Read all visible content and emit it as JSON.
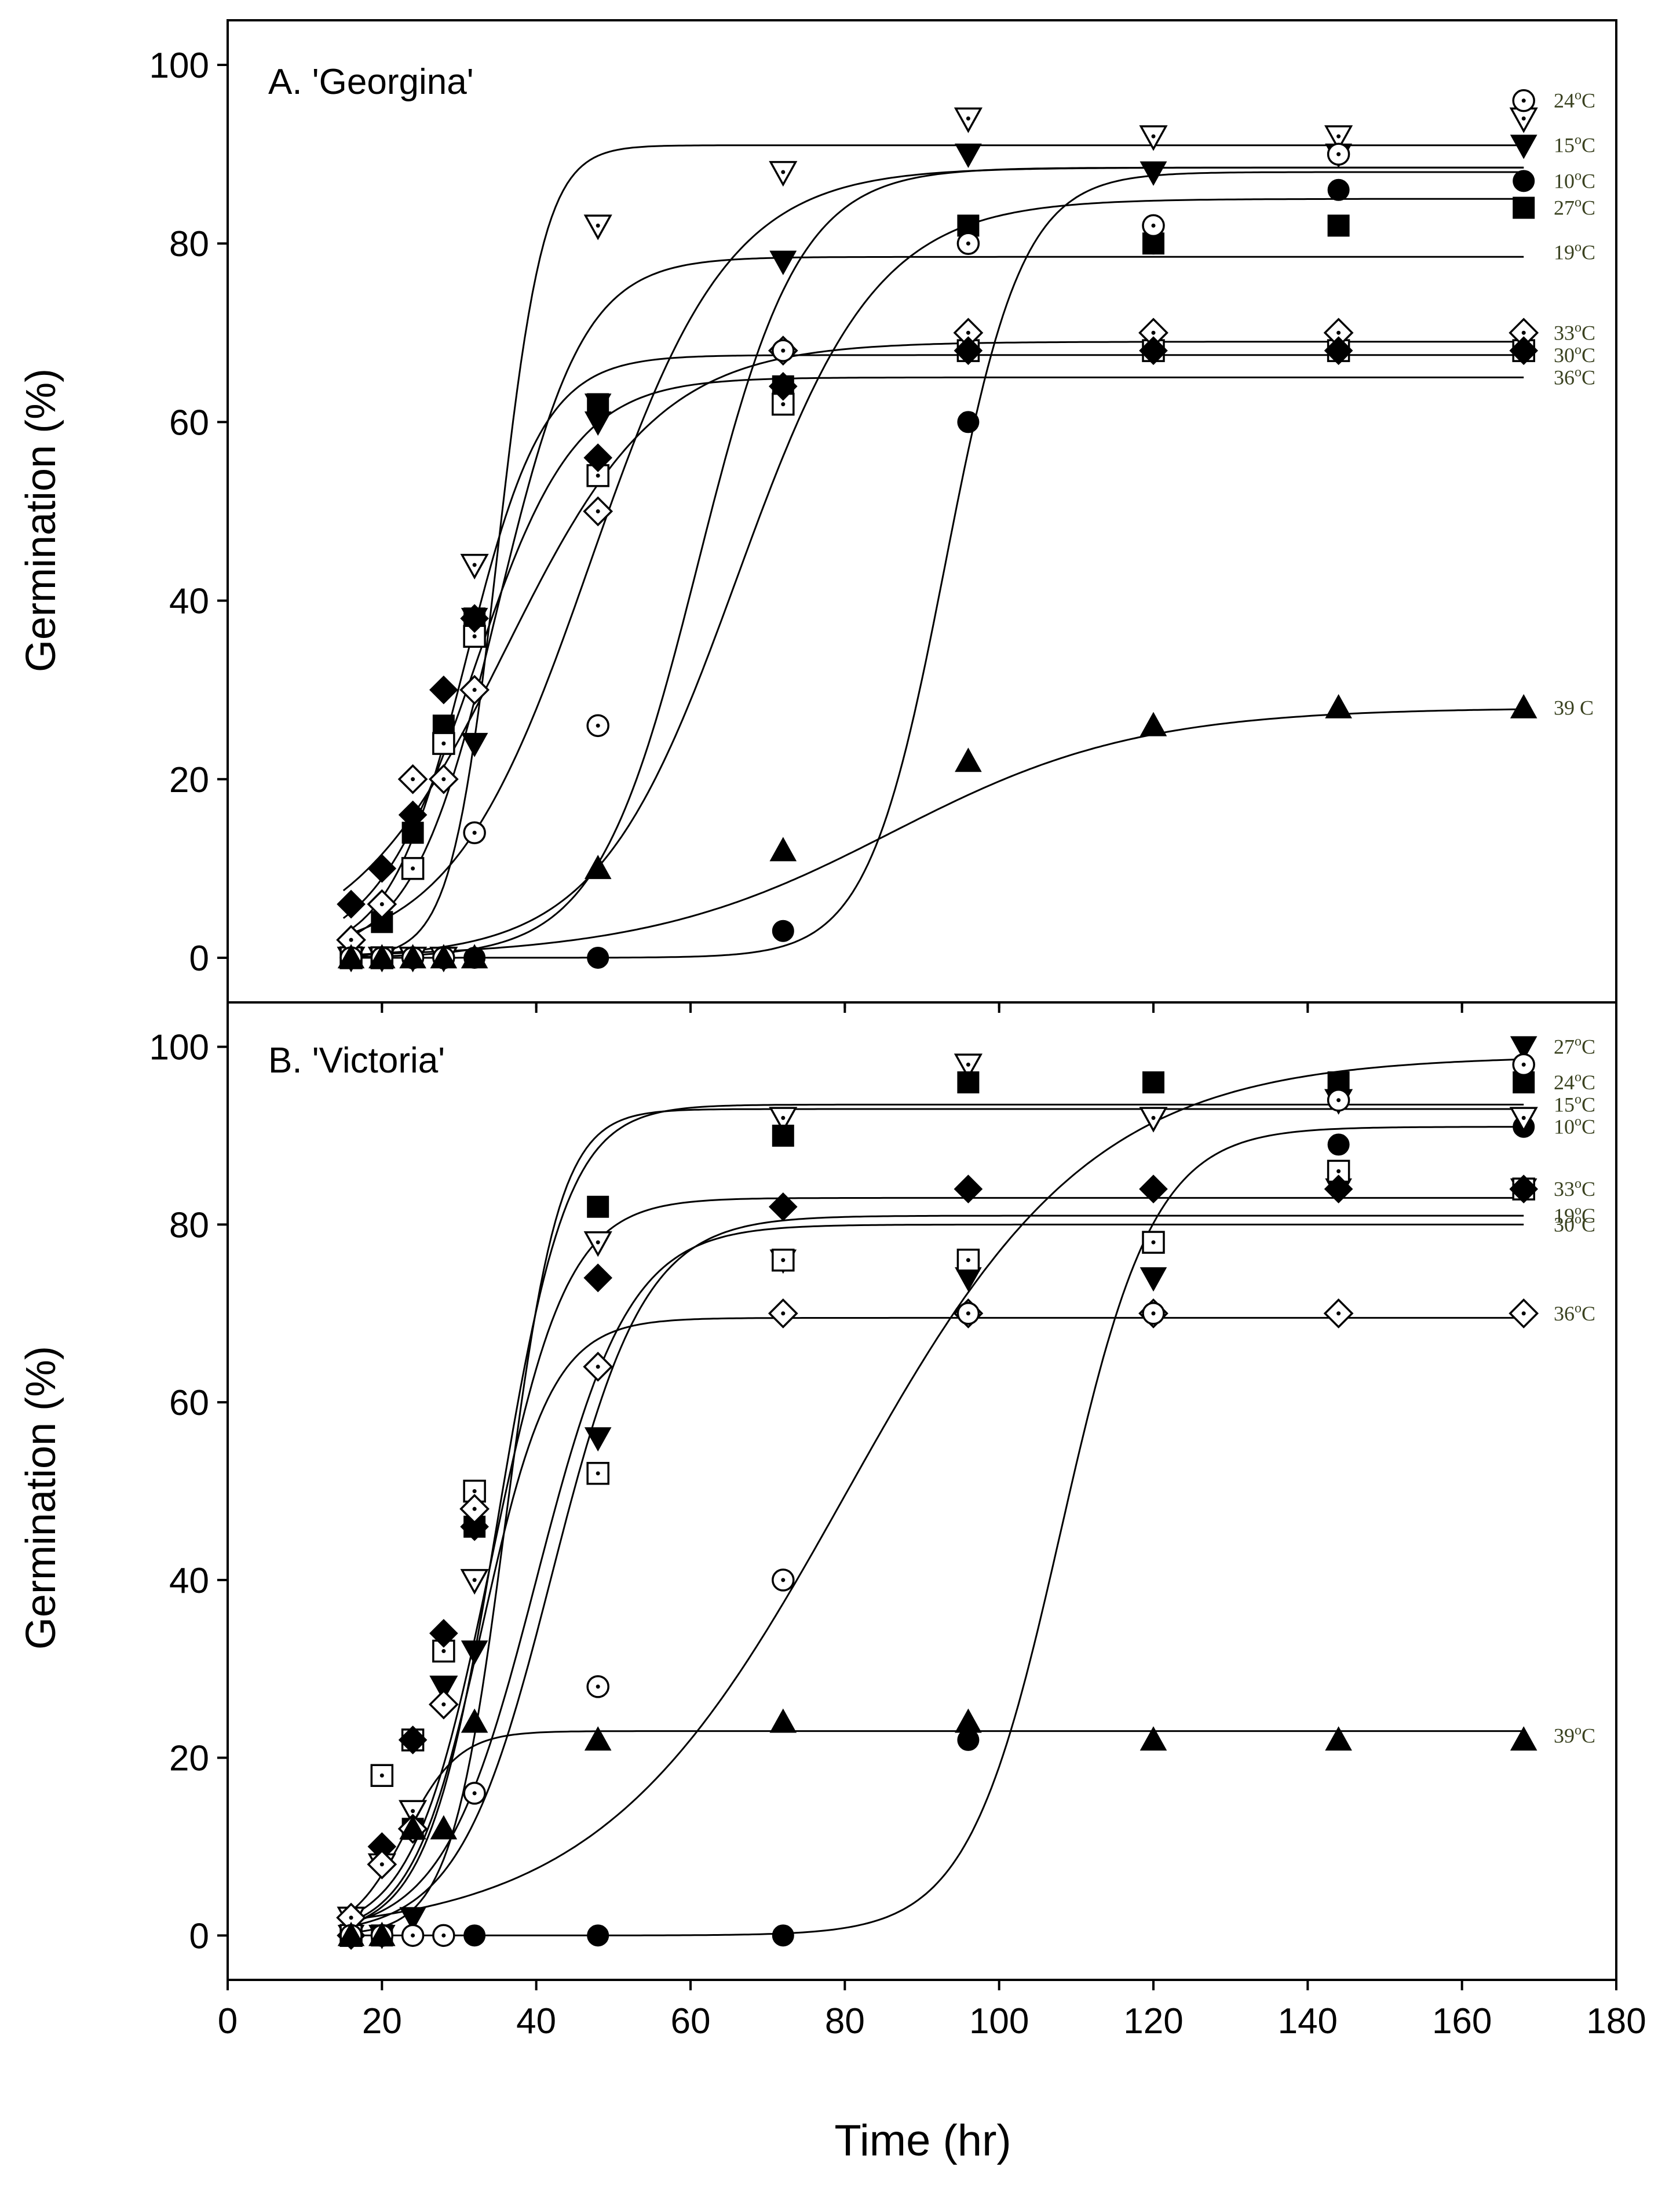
{
  "figure": {
    "xlabel": "Time (hr)",
    "x_ticks": [
      0,
      20,
      40,
      60,
      80,
      100,
      120,
      140,
      160,
      180
    ],
    "y_ticks": [
      0,
      20,
      40,
      60,
      80,
      100
    ]
  },
  "chart_data": [
    {
      "type": "scatter",
      "panel": "A",
      "title": "A. 'Georgina'",
      "xlabel": "",
      "ylabel": "Germination (%)",
      "xlim": [
        0,
        180
      ],
      "ylim": [
        -5,
        105
      ],
      "series": [
        {
          "name": "10°C",
          "label_base": "10",
          "label_sup": "o",
          "label_unit": "C",
          "label_y": 87,
          "marker": "circle-filled",
          "x": [
            16,
            20,
            24,
            28,
            32,
            48,
            72,
            96,
            120,
            144,
            168
          ],
          "y": [
            0,
            0,
            0,
            0,
            0,
            0,
            3,
            60,
            80,
            86,
            87
          ],
          "fit": {
            "a": 88,
            "x0": 93,
            "b": 5
          }
        },
        {
          "name": "15°C",
          "label_base": "15",
          "label_sup": "o",
          "label_unit": "C",
          "label_y": 91,
          "marker": "triangle-down-filled",
          "x": [
            16,
            20,
            24,
            28,
            32,
            48,
            72,
            96,
            120,
            144,
            168
          ],
          "y": [
            0,
            0,
            0,
            0,
            24,
            60,
            78,
            90,
            88,
            90,
            91
          ],
          "fit": {
            "a": 88.5,
            "x0": 47,
            "b": 9
          }
        },
        {
          "name": "19°C",
          "label_base": "19",
          "label_sup": "o",
          "label_unit": "C",
          "label_y": 79,
          "marker": "triangle-down-filled",
          "x": [
            16,
            20,
            24,
            28,
            32,
            48,
            72,
            96,
            120,
            144,
            168
          ],
          "y": [
            0,
            0,
            0,
            0,
            38,
            62,
            78,
            90,
            88,
            90,
            91
          ],
          "fit": {
            "a": 78.5,
            "x0": 35,
            "b": 5.5
          }
        },
        {
          "name": "24°C",
          "label_base": "24",
          "label_sup": "o",
          "label_unit": "C",
          "label_y": 96,
          "marker": "triangle-down-open-dot",
          "x": [
            16,
            20,
            24,
            28,
            32,
            48,
            72,
            96,
            120,
            144,
            168
          ],
          "y": [
            0,
            0,
            0,
            0,
            44,
            82,
            88,
            94,
            92,
            92,
            94
          ],
          "fit": {
            "a": 91,
            "x0": 35,
            "b": 3
          }
        },
        {
          "name": "27°C",
          "label_base": "27",
          "label_sup": "o",
          "label_unit": "C",
          "label_y": 84,
          "marker": "square-filled",
          "x": [
            16,
            20,
            24,
            28,
            32,
            48,
            72,
            96,
            120,
            144,
            168
          ],
          "y": [
            0,
            4,
            14,
            26,
            38,
            62,
            64,
            82,
            80,
            82,
            84
          ],
          "fit": {
            "a": 85,
            "x0": 66,
            "b": 9
          }
        },
        {
          "name": "30°C",
          "label_base": "30",
          "label_sup": "o",
          "label_unit": "C",
          "label_y": 67.5,
          "marker": "square-open-dot",
          "x": [
            16,
            20,
            24,
            28,
            32,
            48,
            72,
            96,
            120,
            144,
            168
          ],
          "y": [
            0,
            0,
            10,
            24,
            36,
            54,
            62,
            68,
            68,
            68,
            68
          ],
          "fit": {
            "a": 67.5,
            "x0": 31,
            "b": 5
          }
        },
        {
          "name": "33°C",
          "label_base": "33",
          "label_sup": "o",
          "label_unit": "C",
          "label_y": 70,
          "marker": "diamond-open-dot",
          "x": [
            16,
            20,
            24,
            28,
            32,
            48,
            72,
            96,
            120,
            144,
            168
          ],
          "y": [
            2,
            6,
            20,
            20,
            30,
            50,
            68,
            70,
            70,
            70,
            70
          ],
          "fit": {
            "a": 69,
            "x0": 36,
            "b": 10
          }
        },
        {
          "name": "36°C",
          "label_base": "36",
          "label_sup": "o",
          "label_unit": "C",
          "label_y": 65,
          "marker": "diamond-filled",
          "x": [
            16,
            20,
            24,
            28,
            32,
            48,
            72,
            96,
            120,
            144,
            168
          ],
          "y": [
            6,
            10,
            16,
            30,
            38,
            56,
            64,
            68,
            68,
            68,
            68
          ],
          "fit": {
            "a": 65,
            "x0": 32,
            "b": 6.5
          }
        },
        {
          "name": "circle open",
          "label_base": "",
          "label_sup": "",
          "label_unit": "",
          "label_y": 0,
          "marker": "circle-open-dot",
          "x": [
            16,
            20,
            24,
            28,
            32,
            48,
            72,
            96,
            120,
            144,
            168
          ],
          "y": [
            0,
            0,
            0,
            0,
            14,
            26,
            68,
            80,
            82,
            90,
            96
          ],
          "fit": {
            "a": 88.5,
            "x0": 61,
            "b": 6.5
          }
        },
        {
          "name": "39 C",
          "label_base": "39 C",
          "label_sup": "",
          "label_unit": "",
          "label_y": 28,
          "marker": "triangle-up-filled",
          "x": [
            16,
            20,
            24,
            28,
            32,
            48,
            72,
            96,
            120,
            144,
            168
          ],
          "y": [
            0,
            0,
            0,
            0,
            0,
            10,
            12,
            22,
            26,
            28,
            28
          ],
          "fit": {
            "a": 28,
            "x0": 86,
            "b": 16
          }
        }
      ]
    },
    {
      "type": "scatter",
      "panel": "B",
      "title": "B. 'Victoria'",
      "xlabel": "Time (hr)",
      "ylabel": "Germination (%)",
      "xlim": [
        0,
        180
      ],
      "ylim": [
        -5,
        105
      ],
      "series": [
        {
          "name": "10°C",
          "label_base": "10",
          "label_sup": "o",
          "label_unit": "C",
          "label_y": 91,
          "marker": "circle-filled",
          "x": [
            16,
            20,
            24,
            28,
            32,
            48,
            72,
            96,
            120,
            144,
            168
          ],
          "y": [
            0,
            0,
            0,
            0,
            0,
            0,
            0,
            22,
            70,
            89,
            91
          ],
          "fit": {
            "a": 91,
            "x0": 108,
            "b": 6
          }
        },
        {
          "name": "15°C",
          "label_base": "15",
          "label_sup": "o",
          "label_unit": "C",
          "label_y": 93.5,
          "marker": "triangle-down-open-dot",
          "x": [
            16,
            20,
            24,
            28,
            32,
            48,
            72,
            96,
            120,
            144,
            168
          ],
          "y": [
            2,
            8,
            14,
            28,
            40,
            78,
            92,
            98,
            92,
            94,
            92
          ],
          "fit": {
            "a": 93.5,
            "x0": 35,
            "b": 4.5
          }
        },
        {
          "name": "19°C",
          "label_base": "19",
          "label_sup": "o",
          "label_unit": "C",
          "label_y": 81,
          "marker": "triangle-down-filled",
          "x": [
            16,
            20,
            24,
            28,
            32,
            48,
            72,
            96,
            120,
            144,
            168
          ],
          "y": [
            0,
            0,
            2,
            28,
            32,
            56,
            76,
            74,
            74,
            84,
            84
          ],
          "fit": {
            "a": 81,
            "x0": 42,
            "b": 6
          }
        },
        {
          "name": "24°C",
          "label_base": "24",
          "label_sup": "o",
          "label_unit": "C",
          "label_y": 96,
          "marker": "square-filled",
          "x": [
            16,
            20,
            24,
            28,
            32,
            48,
            72,
            96,
            120,
            144,
            168
          ],
          "y": [
            0,
            0,
            12,
            32,
            46,
            82,
            90,
            96,
            96,
            96,
            96
          ],
          "fit": {
            "a": 93,
            "x0": 36,
            "b": 3.5
          }
        },
        {
          "name": "27°C",
          "label_base": "27",
          "label_sup": "o",
          "label_unit": "C",
          "label_y": 100,
          "marker": "triangle-down-filled",
          "x": [
            168
          ],
          "y": [
            100
          ],
          "fit": null
        },
        {
          "name": "30°C",
          "label_base": "30",
          "label_sup": "o",
          "label_unit": "C",
          "label_y": 80,
          "marker": "square-open-dot",
          "x": [
            16,
            20,
            24,
            28,
            32,
            48,
            72,
            96,
            120,
            144,
            168
          ],
          "y": [
            0,
            18,
            22,
            32,
            50,
            52,
            76,
            76,
            78,
            86,
            84
          ],
          "fit": {
            "a": 80,
            "x0": 40,
            "b": 6
          }
        },
        {
          "name": "33°C",
          "label_base": "33",
          "label_sup": "o",
          "label_unit": "C",
          "label_y": 84,
          "marker": "diamond-filled",
          "x": [
            16,
            20,
            24,
            28,
            32,
            48,
            72,
            96,
            120,
            144,
            168
          ],
          "y": [
            0,
            10,
            22,
            34,
            46,
            74,
            82,
            84,
            84,
            84,
            84
          ],
          "fit": {
            "a": 83,
            "x0": 34,
            "b": 5
          }
        },
        {
          "name": "36°C",
          "label_base": "36",
          "label_sup": "o",
          "label_unit": "C",
          "label_y": 70,
          "marker": "diamond-open-dot",
          "x": [
            16,
            20,
            24,
            28,
            32,
            48,
            72,
            96,
            120,
            144,
            168
          ],
          "y": [
            2,
            8,
            12,
            26,
            48,
            64,
            70,
            70,
            70,
            70,
            70
          ],
          "fit": {
            "a": 69.5,
            "x0": 33,
            "b": 4.5
          }
        },
        {
          "name": "circle open",
          "label_base": "",
          "label_sup": "",
          "label_unit": "",
          "label_y": 0,
          "marker": "circle-open-dot",
          "x": [
            16,
            20,
            24,
            28,
            32,
            48,
            72,
            96,
            120,
            144,
            168
          ],
          "y": [
            0,
            0,
            0,
            0,
            16,
            28,
            40,
            70,
            70,
            94,
            98
          ],
          "fit": {
            "a": 99,
            "x0": 80,
            "b": 16
          }
        },
        {
          "name": "39°C",
          "label_base": "39",
          "label_sup": "o",
          "label_unit": "C",
          "label_y": 22.5,
          "marker": "triangle-up-filled",
          "x": [
            16,
            20,
            24,
            28,
            32,
            48,
            72,
            96,
            120,
            144,
            168
          ],
          "y": [
            0,
            0,
            12,
            12,
            24,
            22,
            24,
            24,
            22,
            22,
            22
          ],
          "fit": {
            "a": 23,
            "x0": 23,
            "b": 3.5
          }
        }
      ]
    }
  ]
}
